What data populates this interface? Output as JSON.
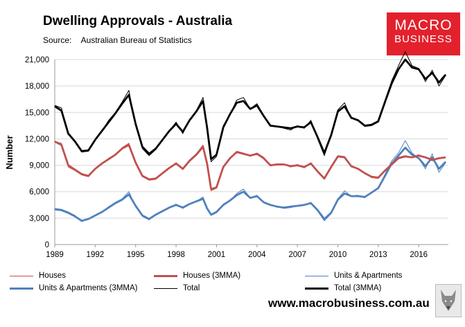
{
  "header": {
    "title": "Dwelling Approvals - Australia",
    "source_label": "Source:",
    "source_value": "Australian Bureau of Statistics"
  },
  "logo": {
    "line1": "MACRO",
    "line2": "BUSINESS"
  },
  "footer": {
    "website": "www.macrobusiness.com.au",
    "icon": "wolf-logo-icon"
  },
  "chart_data": {
    "type": "line",
    "title": "Dwelling Approvals - Australia",
    "xlabel": "",
    "ylabel": "Number",
    "xlim": [
      1989.0,
      2018.2
    ],
    "ylim": [
      0,
      21000
    ],
    "x_ticks": [
      1989,
      1992,
      1995,
      1998,
      2001,
      2004,
      2007,
      2010,
      2013,
      2016
    ],
    "x_tick_labels": [
      "1989",
      "1992",
      "1995",
      "1998",
      "2001",
      "2004",
      "2007",
      "2010",
      "2013",
      "2016"
    ],
    "y_ticks": [
      0,
      3000,
      6000,
      9000,
      12000,
      15000,
      18000,
      21000
    ],
    "y_tick_labels": [
      "0",
      "3,000",
      "6,000",
      "9,000",
      "12,000",
      "15,000",
      "18,000",
      "21,000"
    ],
    "grid": true,
    "legend_position": "bottom",
    "colors": {
      "houses": "#c0504d",
      "houses_3mma": "#c0504d",
      "units": "#4f81bd",
      "units_3mma": "#4f81bd",
      "total": "#000000",
      "total_3mma": "#000000",
      "grid": "#d9d9d9",
      "logo_bg": "#e3212d"
    },
    "series": [
      {
        "key": "houses",
        "name": "Houses",
        "x": [
          1989.0,
          1989.5,
          1990.0,
          1990.5,
          1991.0,
          1991.5,
          1992.0,
          1992.5,
          1993.0,
          1993.5,
          1994.0,
          1994.5,
          1995.0,
          1995.5,
          1996.0,
          1996.5,
          1997.0,
          1997.5,
          1998.0,
          1998.5,
          1999.0,
          1999.5,
          2000.0,
          2000.3,
          2000.6,
          2001.0,
          2001.5,
          2002.0,
          2002.5,
          2003.0,
          2003.5,
          2004.0,
          2004.5,
          2005.0,
          2005.5,
          2006.0,
          2006.5,
          2007.0,
          2007.5,
          2008.0,
          2008.5,
          2009.0,
          2009.5,
          2010.0,
          2010.5,
          2011.0,
          2011.5,
          2012.0,
          2012.5,
          2013.0,
          2013.5,
          2014.0,
          2014.5,
          2015.0,
          2015.5,
          2016.0,
          2016.5,
          2017.0,
          2017.5,
          2018.0
        ],
        "values": [
          11700,
          11500,
          8800,
          8400,
          7900,
          7700,
          8600,
          9200,
          9800,
          10200,
          11000,
          11500,
          9200,
          7700,
          7300,
          7400,
          8100,
          8700,
          9300,
          8500,
          9600,
          10300,
          11300,
          9000,
          6100,
          6400,
          8900,
          9800,
          10600,
          10400,
          10100,
          10400,
          9900,
          9000,
          9100,
          9100,
          8800,
          9100,
          8700,
          9300,
          8200,
          7400,
          8900,
          10100,
          10000,
          8800,
          8600,
          8100,
          7600,
          7500,
          8400,
          9100,
          9900,
          10100,
          9900,
          10200,
          9900,
          9500,
          9800,
          9900
        ]
      },
      {
        "key": "houses_3mma",
        "name": "Houses (3MMA)",
        "x": [
          1989.0,
          1989.5,
          1990.0,
          1990.5,
          1991.0,
          1991.5,
          1992.0,
          1992.5,
          1993.0,
          1993.5,
          1994.0,
          1994.5,
          1995.0,
          1995.5,
          1996.0,
          1996.5,
          1997.0,
          1997.5,
          1998.0,
          1998.5,
          1999.0,
          1999.5,
          2000.0,
          2000.3,
          2000.6,
          2001.0,
          2001.5,
          2002.0,
          2002.5,
          2003.0,
          2003.5,
          2004.0,
          2004.5,
          2005.0,
          2005.5,
          2006.0,
          2006.5,
          2007.0,
          2007.5,
          2008.0,
          2008.5,
          2009.0,
          2009.5,
          2010.0,
          2010.5,
          2011.0,
          2011.5,
          2012.0,
          2012.5,
          2013.0,
          2013.5,
          2014.0,
          2014.5,
          2015.0,
          2015.5,
          2016.0,
          2016.5,
          2017.0,
          2017.5,
          2018.0
        ],
        "values": [
          11700,
          11300,
          9000,
          8500,
          8000,
          7800,
          8600,
          9200,
          9700,
          10200,
          10900,
          11300,
          9300,
          7800,
          7400,
          7500,
          8100,
          8700,
          9200,
          8600,
          9500,
          10200,
          11100,
          9200,
          6300,
          6500,
          8800,
          9800,
          10500,
          10300,
          10100,
          10300,
          9800,
          9000,
          9100,
          9100,
          8900,
          9000,
          8800,
          9200,
          8300,
          7500,
          8800,
          10000,
          9900,
          8900,
          8600,
          8100,
          7700,
          7600,
          8400,
          9100,
          9800,
          10000,
          9900,
          10100,
          9900,
          9600,
          9800,
          9900
        ]
      },
      {
        "key": "units",
        "name": "Units & Apartments",
        "x": [
          1989.0,
          1989.5,
          1990.0,
          1990.5,
          1991.0,
          1991.5,
          1992.0,
          1992.5,
          1993.0,
          1993.5,
          1994.0,
          1994.5,
          1995.0,
          1995.5,
          1996.0,
          1996.5,
          1997.0,
          1997.5,
          1998.0,
          1998.5,
          1999.0,
          1999.5,
          2000.0,
          2000.3,
          2000.6,
          2001.0,
          2001.5,
          2002.0,
          2002.5,
          2003.0,
          2003.5,
          2004.0,
          2004.5,
          2005.0,
          2005.5,
          2006.0,
          2006.5,
          2007.0,
          2007.5,
          2008.0,
          2008.5,
          2009.0,
          2009.5,
          2010.0,
          2010.5,
          2011.0,
          2011.5,
          2012.0,
          2012.5,
          2013.0,
          2013.5,
          2014.0,
          2014.5,
          2015.0,
          2015.5,
          2016.0,
          2016.5,
          2017.0,
          2017.5,
          2018.0
        ],
        "values": [
          4100,
          4000,
          3700,
          3300,
          2600,
          2900,
          3300,
          3700,
          4300,
          4800,
          5200,
          6000,
          4300,
          3200,
          2800,
          3400,
          3800,
          4200,
          4600,
          4100,
          4600,
          4900,
          5400,
          4000,
          3300,
          3600,
          4600,
          5000,
          5800,
          6300,
          5300,
          5600,
          4800,
          4500,
          4300,
          4100,
          4200,
          4400,
          4500,
          4800,
          3800,
          2700,
          3500,
          5200,
          6100,
          5500,
          5600,
          5300,
          5900,
          6400,
          8000,
          9500,
          10400,
          11800,
          10400,
          9800,
          8600,
          10300,
          8200,
          9300
        ]
      },
      {
        "key": "units_3mma",
        "name": "Units & Apartments (3MMA)",
        "x": [
          1989.0,
          1989.5,
          1990.0,
          1990.5,
          1991.0,
          1991.5,
          1992.0,
          1992.5,
          1993.0,
          1993.5,
          1994.0,
          1994.5,
          1995.0,
          1995.5,
          1996.0,
          1996.5,
          1997.0,
          1997.5,
          1998.0,
          1998.5,
          1999.0,
          1999.5,
          2000.0,
          2000.3,
          2000.6,
          2001.0,
          2001.5,
          2002.0,
          2002.5,
          2003.0,
          2003.5,
          2004.0,
          2004.5,
          2005.0,
          2005.5,
          2006.0,
          2006.5,
          2007.0,
          2007.5,
          2008.0,
          2008.5,
          2009.0,
          2009.5,
          2010.0,
          2010.5,
          2011.0,
          2011.5,
          2012.0,
          2012.5,
          2013.0,
          2013.5,
          2014.0,
          2014.5,
          2015.0,
          2015.5,
          2016.0,
          2016.5,
          2017.0,
          2017.5,
          2018.0
        ],
        "values": [
          4000,
          3900,
          3600,
          3200,
          2700,
          2900,
          3300,
          3700,
          4200,
          4700,
          5100,
          5700,
          4400,
          3300,
          2900,
          3400,
          3800,
          4200,
          4500,
          4200,
          4600,
          4900,
          5200,
          4100,
          3400,
          3700,
          4500,
          5000,
          5600,
          6000,
          5300,
          5500,
          4800,
          4500,
          4300,
          4200,
          4300,
          4400,
          4500,
          4700,
          3900,
          2900,
          3600,
          5100,
          5800,
          5500,
          5500,
          5400,
          5900,
          6400,
          7800,
          9200,
          10100,
          11000,
          10200,
          9800,
          8900,
          9900,
          8600,
          9400
        ]
      },
      {
        "key": "total",
        "name": "Total",
        "x": [
          1989.0,
          1989.5,
          1990.0,
          1990.5,
          1991.0,
          1991.5,
          1992.0,
          1992.5,
          1993.0,
          1993.5,
          1994.0,
          1994.5,
          1995.0,
          1995.5,
          1996.0,
          1996.5,
          1997.0,
          1997.5,
          1998.0,
          1998.5,
          1999.0,
          1999.5,
          2000.0,
          2000.3,
          2000.6,
          2001.0,
          2001.5,
          2002.0,
          2002.5,
          2003.0,
          2003.5,
          2004.0,
          2004.5,
          2005.0,
          2005.5,
          2006.0,
          2006.5,
          2007.0,
          2007.5,
          2008.0,
          2008.5,
          2009.0,
          2009.5,
          2010.0,
          2010.5,
          2011.0,
          2011.5,
          2012.0,
          2012.5,
          2013.0,
          2013.5,
          2014.0,
          2014.5,
          2015.0,
          2015.5,
          2016.0,
          2016.5,
          2017.0,
          2017.5,
          2018.0
        ],
        "values": [
          15800,
          15500,
          12500,
          11700,
          10500,
          10600,
          11900,
          12900,
          14100,
          15000,
          16200,
          17500,
          13500,
          10900,
          10100,
          10800,
          11900,
          12900,
          13900,
          12600,
          14200,
          15200,
          16700,
          13000,
          9400,
          10000,
          13500,
          14800,
          16400,
          16700,
          15400,
          16000,
          14700,
          13500,
          13400,
          13200,
          13000,
          13500,
          13200,
          14100,
          12000,
          10100,
          12400,
          15300,
          16100,
          14300,
          14200,
          13400,
          13500,
          13900,
          16400,
          18600,
          20300,
          21900,
          20300,
          20000,
          18500,
          19800,
          18000,
          19200
        ]
      },
      {
        "key": "total_3mma",
        "name": "Total (3MMA)",
        "x": [
          1989.0,
          1989.5,
          1990.0,
          1990.5,
          1991.0,
          1991.5,
          1992.0,
          1992.5,
          1993.0,
          1993.5,
          1994.0,
          1994.5,
          1995.0,
          1995.5,
          1996.0,
          1996.5,
          1997.0,
          1997.5,
          1998.0,
          1998.5,
          1999.0,
          1999.5,
          2000.0,
          2000.3,
          2000.6,
          2001.0,
          2001.5,
          2002.0,
          2002.5,
          2003.0,
          2003.5,
          2004.0,
          2004.5,
          2005.0,
          2005.5,
          2006.0,
          2006.5,
          2007.0,
          2007.5,
          2008.0,
          2008.5,
          2009.0,
          2009.5,
          2010.0,
          2010.5,
          2011.0,
          2011.5,
          2012.0,
          2012.5,
          2013.0,
          2013.5,
          2014.0,
          2014.5,
          2015.0,
          2015.5,
          2016.0,
          2016.5,
          2017.0,
          2017.5,
          2018.0
        ],
        "values": [
          15700,
          15200,
          12600,
          11700,
          10600,
          10700,
          11900,
          12900,
          13900,
          14900,
          16000,
          17000,
          13700,
          11100,
          10300,
          10900,
          11900,
          12900,
          13700,
          12800,
          14100,
          15100,
          16300,
          13300,
          9700,
          10200,
          13300,
          14800,
          16100,
          16300,
          15400,
          15800,
          14600,
          13500,
          13400,
          13300,
          13200,
          13400,
          13300,
          13900,
          12200,
          10400,
          12400,
          15100,
          15700,
          14400,
          14100,
          13500,
          13600,
          14000,
          16200,
          18300,
          19900,
          21000,
          20100,
          19900,
          18800,
          19500,
          18400,
          19300
        ]
      }
    ]
  }
}
